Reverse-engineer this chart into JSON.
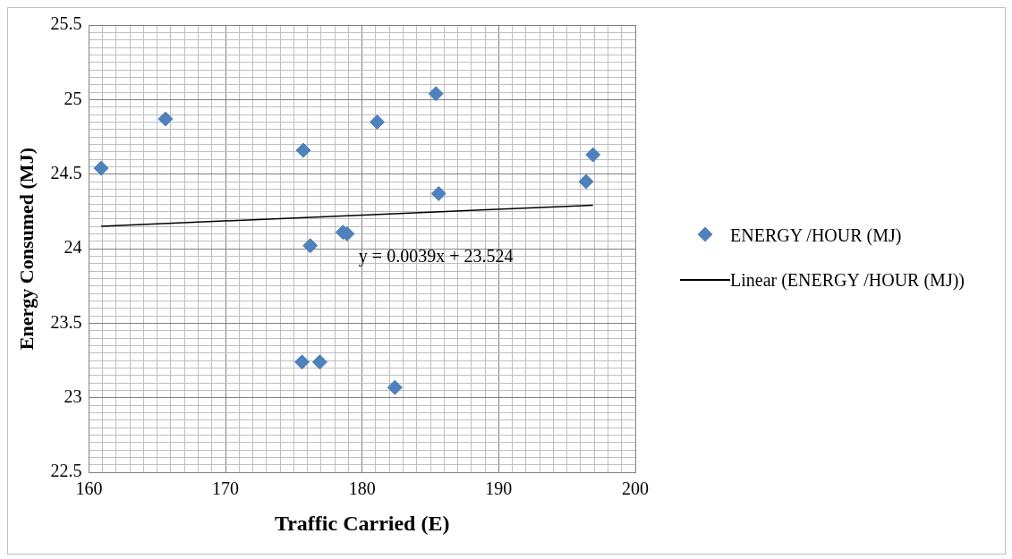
{
  "chart_data": {
    "type": "scatter",
    "xlabel": "Traffic Carried (E)",
    "ylabel": "Energy Consumed (MJ)",
    "grid": true,
    "legend": "right",
    "marker": "diamond",
    "xlim": [
      160,
      200
    ],
    "ylim": [
      22.5,
      25.5
    ],
    "xticks": [
      160,
      {
        "value": 161,
        "label": null
      },
      {
        "value": 162,
        "label": null
      },
      {
        "value": 163,
        "label": null
      },
      {
        "value": 164,
        "label": null
      },
      {
        "value": 165,
        "label": null
      },
      {
        "value": 166,
        "label": null
      },
      {
        "value": 167,
        "label": null
      },
      {
        "value": 168,
        "label": null
      },
      {
        "value": 169,
        "label": null
      },
      170,
      {
        "value": 171,
        "label": null
      },
      {
        "value": 172,
        "label": null
      },
      {
        "value": 173,
        "label": null
      },
      {
        "value": 174,
        "label": null
      },
      {
        "value": 175,
        "label": null
      },
      {
        "value": 176,
        "label": null
      },
      {
        "value": 177,
        "label": null
      },
      {
        "value": 178,
        "label": null
      },
      {
        "value": 179,
        "label": null
      },
      180,
      {
        "value": 181,
        "label": null
      },
      {
        "value": 182,
        "label": null
      },
      {
        "value": 183,
        "label": null
      },
      {
        "value": 184,
        "label": null
      },
      {
        "value": 185,
        "label": null
      },
      {
        "value": 186,
        "label": null
      },
      {
        "value": 187,
        "label": null
      },
      {
        "value": 188,
        "label": null
      },
      {
        "value": 189,
        "label": null
      },
      190,
      {
        "value": 191,
        "label": null
      },
      {
        "value": 192,
        "label": null
      },
      {
        "value": 193,
        "label": null
      },
      {
        "value": 194,
        "label": null
      },
      {
        "value": 195,
        "label": null
      },
      {
        "value": 196,
        "label": null
      },
      {
        "value": 197,
        "label": null
      },
      {
        "value": 198,
        "label": null
      },
      {
        "value": 199,
        "label": null
      },
      200
    ],
    "yticks": [
      22.5,
      {
        "value": 22.55,
        "label": null
      },
      {
        "value": 22.6,
        "label": null
      },
      {
        "value": 22.65,
        "label": null
      },
      {
        "value": 22.7,
        "label": null
      },
      {
        "value": 22.75,
        "label": null
      },
      {
        "value": 22.8,
        "label": null
      },
      {
        "value": 22.85,
        "label": null
      },
      {
        "value": 22.9,
        "label": null
      },
      {
        "value": 22.95,
        "label": null
      },
      23,
      {
        "value": 23.05,
        "label": null
      },
      {
        "value": 23.1,
        "label": null
      },
      {
        "value": 23.15,
        "label": null
      },
      {
        "value": 23.2,
        "label": null
      },
      {
        "value": 23.25,
        "label": null
      },
      {
        "value": 23.3,
        "label": null
      },
      {
        "value": 23.35,
        "label": null
      },
      {
        "value": 23.4,
        "label": null
      },
      {
        "value": 23.45,
        "label": null
      },
      23.5,
      {
        "value": 23.55,
        "label": null
      },
      {
        "value": 23.6,
        "label": null
      },
      {
        "value": 23.65,
        "label": null
      },
      {
        "value": 23.7,
        "label": null
      },
      {
        "value": 23.75,
        "label": null
      },
      {
        "value": 23.8,
        "label": null
      },
      {
        "value": 23.85,
        "label": null
      },
      {
        "value": 23.9,
        "label": null
      },
      {
        "value": 23.95,
        "label": null
      },
      24,
      {
        "value": 24.05,
        "label": null
      },
      {
        "value": 24.1,
        "label": null
      },
      {
        "value": 24.15,
        "label": null
      },
      {
        "value": 24.2,
        "label": null
      },
      {
        "value": 24.25,
        "label": null
      },
      {
        "value": 24.3,
        "label": null
      },
      {
        "value": 24.35,
        "label": null
      },
      {
        "value": 24.4,
        "label": null
      },
      {
        "value": 24.45,
        "label": null
      },
      24.5,
      {
        "value": 24.55,
        "label": null
      },
      {
        "value": 24.6,
        "label": null
      },
      {
        "value": 24.65,
        "label": null
      },
      {
        "value": 24.7,
        "label": null
      },
      {
        "value": 24.75,
        "label": null
      },
      {
        "value": 24.8,
        "label": null
      },
      {
        "value": 24.85,
        "label": null
      },
      {
        "value": 24.9,
        "label": null
      },
      {
        "value": 24.95,
        "label": null
      },
      25,
      {
        "value": 25.05,
        "label": null
      },
      {
        "value": 25.1,
        "label": null
      },
      {
        "value": 25.15,
        "label": null
      },
      {
        "value": 25.2,
        "label": null
      },
      {
        "value": 25.25,
        "label": null
      },
      {
        "value": 25.3,
        "label": null
      },
      {
        "value": 25.35,
        "label": null
      },
      {
        "value": 25.4,
        "label": null
      },
      {
        "value": 25.45,
        "label": null
      },
      25.5
    ],
    "series": [
      {
        "name": "ENERGY /HOUR (MJ)",
        "color": "#4f81bd",
        "x": [
          160.9,
          165.6,
          175.7,
          176.2,
          178.6,
          178.9,
          175.6,
          176.9,
          181.1,
          182.4,
          185.4,
          185.6,
          196.4,
          196.9
        ],
        "values": [
          24.54,
          24.87,
          24.66,
          24.02,
          24.11,
          24.1,
          23.24,
          23.24,
          24.85,
          23.07,
          25.04,
          24.37,
          24.45,
          24.63
        ]
      },
      {
        "name": "Linear (ENERGY /HOUR (MJ))",
        "type": "line",
        "marker": "none",
        "color": "#000000",
        "x": [
          160.9,
          196.9
        ],
        "values": [
          24.151,
          24.292
        ]
      }
    ],
    "annotations": [
      "y = 0.0039x + 23.524"
    ]
  }
}
